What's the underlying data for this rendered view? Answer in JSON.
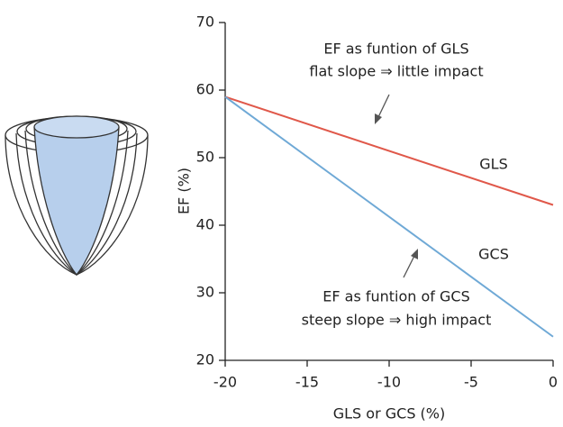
{
  "chart_data": {
    "type": "line",
    "x": [
      -20,
      0
    ],
    "series": [
      {
        "name": "GLS",
        "color": "#e0584a",
        "values": [
          59,
          43
        ]
      },
      {
        "name": "GCS",
        "color": "#6fa9d6",
        "values": [
          59,
          23.5
        ]
      }
    ],
    "xlim": [
      -20,
      0
    ],
    "xticks": [
      -20,
      -15,
      -10,
      -5,
      0
    ],
    "ylim": [
      20,
      70
    ],
    "yticks": [
      20,
      30,
      40,
      50,
      60,
      70
    ],
    "xlabel": "GLS or GCS (%)",
    "ylabel": "EF (%)",
    "annotations": [
      "EF as funtion of GLS",
      "flat slope ⇒ little impact",
      "EF as funtion of GCS",
      "steep slope ⇒ high impact"
    ],
    "grid": false
  }
}
